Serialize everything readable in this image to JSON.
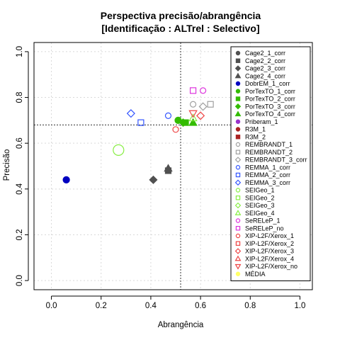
{
  "chart_data": {
    "type": "scatter",
    "title": "Perspectiva precisão/abrangência",
    "subtitle": "[Identificação : ALTrel : Selectivo]",
    "xlabel": "Abrangência",
    "ylabel": "Precisão",
    "xlim": [
      -0.07,
      1.05
    ],
    "ylim": [
      -0.04,
      1.04
    ],
    "xticks": [
      "0.0",
      "0.2",
      "0.4",
      "0.6",
      "0.8",
      "1.0"
    ],
    "yticks": [
      "0.0",
      "0.2",
      "0.4",
      "0.6",
      "0.8",
      "1.0"
    ],
    "grid": true,
    "legend_position": "right",
    "reference_lines": {
      "vertical_x": 0.52,
      "horizontal_y": 0.68
    },
    "series": [
      {
        "name": "Cage2_1_corr",
        "color": "#505050",
        "shape": "circle",
        "fill": true,
        "points": []
      },
      {
        "name": "Cage2_2_corr",
        "color": "#505050",
        "shape": "square",
        "fill": true,
        "points": [
          [
            0.47,
            0.48
          ]
        ]
      },
      {
        "name": "Cage2_3_corr",
        "color": "#505050",
        "shape": "diamond",
        "fill": true,
        "points": [
          [
            0.41,
            0.44
          ]
        ]
      },
      {
        "name": "Cage2_4_corr",
        "color": "#505050",
        "shape": "triangle",
        "fill": true,
        "points": [
          [
            0.47,
            0.49
          ]
        ]
      },
      {
        "name": "DobrEM_1_corr",
        "color": "#0000c0",
        "shape": "circle",
        "fill": true,
        "points": [
          [
            0.06,
            0.44
          ]
        ]
      },
      {
        "name": "PorTexTO_1_corr",
        "color": "#33bb00",
        "shape": "circle",
        "fill": true,
        "points": [
          [
            0.51,
            0.7
          ]
        ]
      },
      {
        "name": "PorTexTO_2_corr",
        "color": "#33bb00",
        "shape": "square",
        "fill": true,
        "points": [
          [
            0.54,
            0.69
          ]
        ]
      },
      {
        "name": "PorTexTO_3_corr",
        "color": "#33bb00",
        "shape": "diamond",
        "fill": true,
        "points": [
          [
            0.53,
            0.69
          ]
        ]
      },
      {
        "name": "PorTexTO_4_corr",
        "color": "#33bb00",
        "shape": "triangle",
        "fill": true,
        "points": [
          [
            0.57,
            0.69
          ]
        ]
      },
      {
        "name": "Priberam_1",
        "color": "#9933cc",
        "shape": "circle",
        "fill": true,
        "points": []
      },
      {
        "name": "R3M_1",
        "color": "#aa2222",
        "shape": "circle",
        "fill": true,
        "points": []
      },
      {
        "name": "R3M_2",
        "color": "#aa2222",
        "shape": "square",
        "fill": true,
        "points": []
      },
      {
        "name": "REMBRANDT_1",
        "color": "#a0a0a0",
        "shape": "circle",
        "fill": false,
        "points": [
          [
            0.57,
            0.77
          ]
        ]
      },
      {
        "name": "REMBRANDT_2",
        "color": "#a0a0a0",
        "shape": "square",
        "fill": false,
        "points": [
          [
            0.64,
            0.77
          ]
        ]
      },
      {
        "name": "REMBRANDT_3_corr",
        "color": "#a0a0a0",
        "shape": "diamond",
        "fill": false,
        "points": [
          [
            0.61,
            0.76
          ]
        ]
      },
      {
        "name": "REMMA_1_corr",
        "color": "#3355ff",
        "shape": "circle",
        "fill": false,
        "points": [
          [
            0.47,
            0.72
          ]
        ]
      },
      {
        "name": "REMMA_2_corr",
        "color": "#3355ff",
        "shape": "square",
        "fill": false,
        "points": [
          [
            0.36,
            0.69
          ]
        ]
      },
      {
        "name": "REMMA_3_corr",
        "color": "#3355ff",
        "shape": "diamond",
        "fill": false,
        "points": [
          [
            0.32,
            0.73
          ]
        ]
      },
      {
        "name": "SEIGeo_1",
        "color": "#88ee44",
        "shape": "circle",
        "fill": false,
        "points": [
          [
            0.27,
            0.57
          ]
        ]
      },
      {
        "name": "SEIGeo_2",
        "color": "#88ee44",
        "shape": "square",
        "fill": false,
        "points": []
      },
      {
        "name": "SEIGeo_3",
        "color": "#88ee44",
        "shape": "diamond",
        "fill": false,
        "points": []
      },
      {
        "name": "SEIGeo_4",
        "color": "#88ee44",
        "shape": "triangle",
        "fill": false,
        "points": [
          [
            0.57,
            0.71
          ]
        ]
      },
      {
        "name": "SeRELeP_1",
        "color": "#dd33dd",
        "shape": "circle",
        "fill": false,
        "points": [
          [
            0.61,
            0.83
          ]
        ]
      },
      {
        "name": "SeRELeP_no",
        "color": "#dd33dd",
        "shape": "square",
        "fill": false,
        "points": [
          [
            0.57,
            0.83
          ]
        ]
      },
      {
        "name": "XIP-L2F/Xerox_1",
        "color": "#ee4444",
        "shape": "circle",
        "fill": false,
        "points": [
          [
            0.5,
            0.66
          ]
        ]
      },
      {
        "name": "XIP-L2F/Xerox_2",
        "color": "#ee4444",
        "shape": "square",
        "fill": false,
        "points": []
      },
      {
        "name": "XIP-L2F/Xerox_3",
        "color": "#ee4444",
        "shape": "diamond",
        "fill": false,
        "points": [
          [
            0.6,
            0.72
          ]
        ]
      },
      {
        "name": "XIP-L2F/Xerox_4",
        "color": "#ee4444",
        "shape": "triangle",
        "fill": false,
        "points": []
      },
      {
        "name": "XIP-L2F/Xerox_no",
        "color": "#ee4444",
        "shape": "triangle-down",
        "fill": false,
        "points": [
          [
            0.57,
            0.73
          ]
        ]
      },
      {
        "name": "MÉDIA",
        "color": "#ffff66",
        "shape": "circle",
        "fill": true,
        "points": []
      }
    ]
  }
}
